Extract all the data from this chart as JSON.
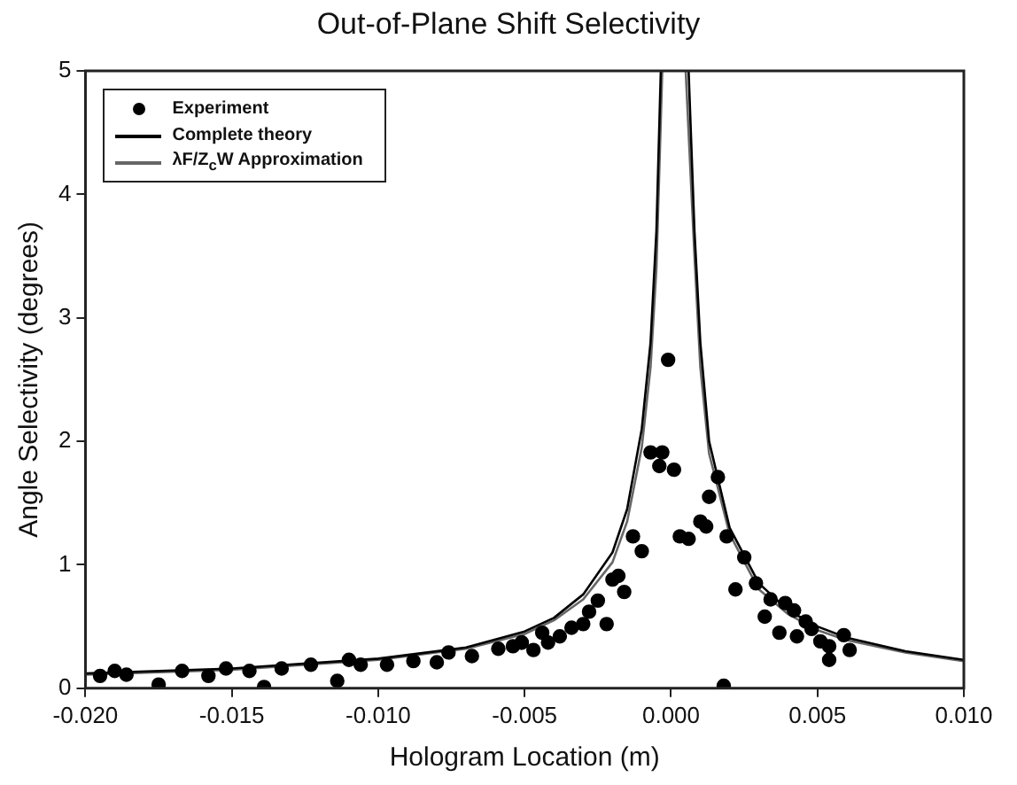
{
  "chart_data": {
    "type": "scatter",
    "title": "Out-of-Plane Shift Selectivity",
    "xlabel": "Hologram Location (m)",
    "ylabel": "Angle Selectivity (degrees)",
    "xlim": [
      -0.02,
      0.01
    ],
    "ylim": [
      0,
      5
    ],
    "xticks": [
      {
        "value": -0.02,
        "label": "-0.020"
      },
      {
        "value": -0.015,
        "label": "-0.015"
      },
      {
        "value": -0.01,
        "label": "-0.010"
      },
      {
        "value": -0.005,
        "label": "-0.005"
      },
      {
        "value": 0,
        "label": "0.000"
      },
      {
        "value": 0.005,
        "label": "0.005"
      },
      {
        "value": 0.01,
        "label": "0.010"
      }
    ],
    "yticks": [
      0,
      1,
      2,
      3,
      4,
      5
    ],
    "grid": false,
    "legend": "top left",
    "series": [
      {
        "name": "Experiment",
        "type": "scatter",
        "marker": "circle",
        "color": "#000000",
        "x": [
          -0.0195,
          -0.019,
          -0.0186,
          -0.0175,
          -0.0167,
          -0.0158,
          -0.0152,
          -0.0144,
          -0.0139,
          -0.0133,
          -0.0123,
          -0.0114,
          -0.011,
          -0.0106,
          -0.0097,
          -0.0088,
          -0.008,
          -0.0076,
          -0.0068,
          -0.0059,
          -0.0051,
          -0.0044,
          -0.0054,
          -0.0051,
          -0.0047,
          -0.0042,
          -0.0038,
          -0.0034,
          -0.003,
          -0.0028,
          -0.0025,
          -0.0022,
          -0.002,
          -0.0018,
          -0.0016,
          -0.0013,
          -0.001,
          -0.0007,
          -0.0004,
          -0.0003,
          -0.0001,
          0.0001,
          0.0003,
          0.0006,
          0.001,
          0.0012,
          0.0013,
          0.0016,
          0.0018,
          0.0019,
          0.0022,
          0.0025,
          0.0029,
          0.0032,
          0.0034,
          0.0037,
          0.0039,
          0.0042,
          0.0043,
          0.0046,
          0.0048,
          0.0051,
          0.0054,
          0.0054,
          0.0059,
          0.0061
        ],
        "values": [
          0.1,
          0.14,
          0.11,
          0.03,
          0.14,
          0.1,
          0.16,
          0.14,
          0.01,
          0.16,
          0.19,
          0.06,
          0.23,
          0.19,
          0.19,
          0.22,
          0.21,
          0.29,
          0.26,
          0.32,
          0.37,
          0.45,
          0.34,
          0.37,
          0.31,
          0.37,
          0.42,
          0.49,
          0.52,
          0.62,
          0.71,
          0.52,
          0.88,
          0.91,
          0.78,
          1.23,
          1.11,
          1.91,
          1.8,
          1.91,
          2.66,
          1.77,
          1.23,
          1.21,
          1.35,
          1.31,
          1.55,
          1.71,
          0.02,
          1.23,
          0.8,
          1.06,
          0.85,
          0.58,
          0.72,
          0.45,
          0.69,
          0.63,
          0.42,
          0.54,
          0.48,
          0.38,
          0.23,
          0.34,
          0.43,
          0.31
        ]
      },
      {
        "name": "Complete theory",
        "type": "line",
        "marker": "none",
        "line_style": "solid",
        "color": "#000000",
        "x": [
          -0.02,
          -0.015,
          -0.01,
          -0.007,
          -0.005,
          -0.004,
          -0.003,
          -0.002,
          -0.0015,
          -0.001,
          -0.0007,
          -0.0005,
          -0.00035,
          0.0001,
          0.0006,
          0.0008,
          0.001,
          0.0013,
          0.002,
          0.003,
          0.004,
          0.005,
          0.006,
          0.008,
          0.01
        ],
        "values": [
          0.12,
          0.16,
          0.24,
          0.33,
          0.46,
          0.57,
          0.76,
          1.1,
          1.45,
          2.1,
          2.8,
          3.7,
          5,
          null,
          5,
          3.7,
          2.8,
          2.0,
          1.3,
          0.85,
          0.63,
          0.5,
          0.41,
          0.3,
          0.23
        ]
      },
      {
        "name": "λF/Z$_{c}$W Approximation",
        "type": "line",
        "marker": "none",
        "line_style": "solid",
        "color": "#666666",
        "x": [
          -0.02,
          -0.015,
          -0.01,
          -0.007,
          -0.005,
          -0.004,
          -0.003,
          -0.002,
          -0.0015,
          -0.001,
          -0.0007,
          -0.0005,
          -0.0003,
          0.0001,
          0.0005,
          0.0008,
          0.001,
          0.0013,
          0.002,
          0.003,
          0.004,
          0.005,
          0.006,
          0.008,
          0.01
        ],
        "values": [
          0.11,
          0.15,
          0.23,
          0.32,
          0.44,
          0.55,
          0.72,
          1.02,
          1.35,
          1.95,
          2.6,
          3.4,
          5,
          null,
          5,
          3.5,
          2.6,
          1.9,
          1.25,
          0.8,
          0.6,
          0.47,
          0.39,
          0.29,
          0.22
        ]
      }
    ]
  }
}
